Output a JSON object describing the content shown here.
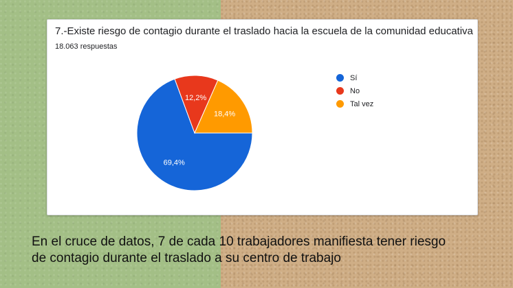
{
  "card": {
    "title": "7.-Existe riesgo de contagio durante el traslado hacia la escuela de la comunidad educativa",
    "subtitle": "18.063 respuestas"
  },
  "caption": {
    "line1": "En el cruce de datos, 7 de cada 10 trabajadores manifiesta tener riesgo",
    "line2": "de contagio durante el traslado a su centro de trabajo"
  },
  "chart_data": {
    "type": "pie",
    "title": "7.-Existe riesgo de contagio durante el traslado hacia la escuela de la comunidad educativa",
    "subtitle": "18.063 respuestas",
    "legend_position": "right",
    "slices": [
      {
        "label": "Sí",
        "value": 69.4,
        "display": "69,4%",
        "color": "#1565d8"
      },
      {
        "label": "No",
        "value": 12.2,
        "display": "12,2%",
        "color": "#e8381c"
      },
      {
        "label": "Tal vez",
        "value": 18.4,
        "display": "18,4%",
        "color": "#ff9a00"
      }
    ]
  }
}
